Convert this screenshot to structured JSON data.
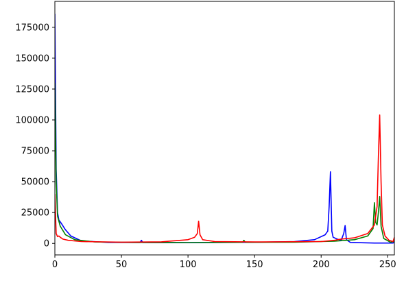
{
  "chart_data": {
    "type": "line",
    "title": "",
    "xlabel": "",
    "ylabel": "",
    "xlim": [
      0,
      255
    ],
    "ylim": [
      -9300,
      196000
    ],
    "grid": false,
    "xticks": [
      0,
      50,
      100,
      150,
      200,
      250
    ],
    "yticks": [
      0,
      25000,
      50000,
      75000,
      100000,
      125000,
      150000,
      175000
    ],
    "series": [
      {
        "color": "#0000ff",
        "points": [
          [
            0,
            186000
          ],
          [
            1,
            60000
          ],
          [
            2,
            25000
          ],
          [
            3,
            19000
          ],
          [
            5,
            16000
          ],
          [
            8,
            11000
          ],
          [
            12,
            6000
          ],
          [
            20,
            2000
          ],
          [
            40,
            800
          ],
          [
            64,
            700
          ],
          [
            65,
            2500
          ],
          [
            66,
            700
          ],
          [
            100,
            600
          ],
          [
            150,
            900
          ],
          [
            180,
            1500
          ],
          [
            195,
            3000
          ],
          [
            203,
            7000
          ],
          [
            205,
            10000
          ],
          [
            206,
            30000
          ],
          [
            207,
            58000
          ],
          [
            208,
            10000
          ],
          [
            209,
            5000
          ],
          [
            212,
            3500
          ],
          [
            215,
            2500
          ],
          [
            217,
            8000
          ],
          [
            218,
            14500
          ],
          [
            219,
            3000
          ],
          [
            222,
            800
          ],
          [
            240,
            300
          ],
          [
            254,
            300
          ],
          [
            255,
            1500
          ]
        ]
      },
      {
        "color": "#008000",
        "points": [
          [
            0,
            130000
          ],
          [
            1,
            50000
          ],
          [
            2,
            22000
          ],
          [
            4,
            14000
          ],
          [
            8,
            7000
          ],
          [
            15,
            3000
          ],
          [
            30,
            1200
          ],
          [
            60,
            800
          ],
          [
            100,
            700
          ],
          [
            141,
            900
          ],
          [
            142,
            2500
          ],
          [
            143,
            900
          ],
          [
            180,
            1000
          ],
          [
            210,
            1800
          ],
          [
            225,
            3000
          ],
          [
            235,
            6000
          ],
          [
            239,
            12000
          ],
          [
            240,
            33000
          ],
          [
            241,
            17000
          ],
          [
            242,
            15000
          ],
          [
            243,
            25000
          ],
          [
            244,
            38000
          ],
          [
            245,
            14000
          ],
          [
            247,
            4000
          ],
          [
            252,
            1000
          ],
          [
            255,
            1500
          ]
        ]
      },
      {
        "color": "#ff0000",
        "points": [
          [
            0,
            40000
          ],
          [
            1,
            8000
          ],
          [
            2,
            5500
          ],
          [
            3,
            6000
          ],
          [
            4,
            5000
          ],
          [
            6,
            3500
          ],
          [
            10,
            2500
          ],
          [
            20,
            1500
          ],
          [
            50,
            1000
          ],
          [
            80,
            1300
          ],
          [
            100,
            3000
          ],
          [
            105,
            5000
          ],
          [
            107,
            8000
          ],
          [
            108,
            18000
          ],
          [
            109,
            7000
          ],
          [
            111,
            3000
          ],
          [
            120,
            1500
          ],
          [
            150,
            1200
          ],
          [
            200,
            1500
          ],
          [
            210,
            2500
          ],
          [
            215,
            3500
          ],
          [
            225,
            4500
          ],
          [
            235,
            8000
          ],
          [
            240,
            15000
          ],
          [
            242,
            30000
          ],
          [
            243,
            70000
          ],
          [
            244,
            104000
          ],
          [
            245,
            50000
          ],
          [
            246,
            15000
          ],
          [
            248,
            6000
          ],
          [
            251,
            2500
          ],
          [
            254,
            1500
          ],
          [
            255,
            5000
          ]
        ]
      }
    ]
  }
}
